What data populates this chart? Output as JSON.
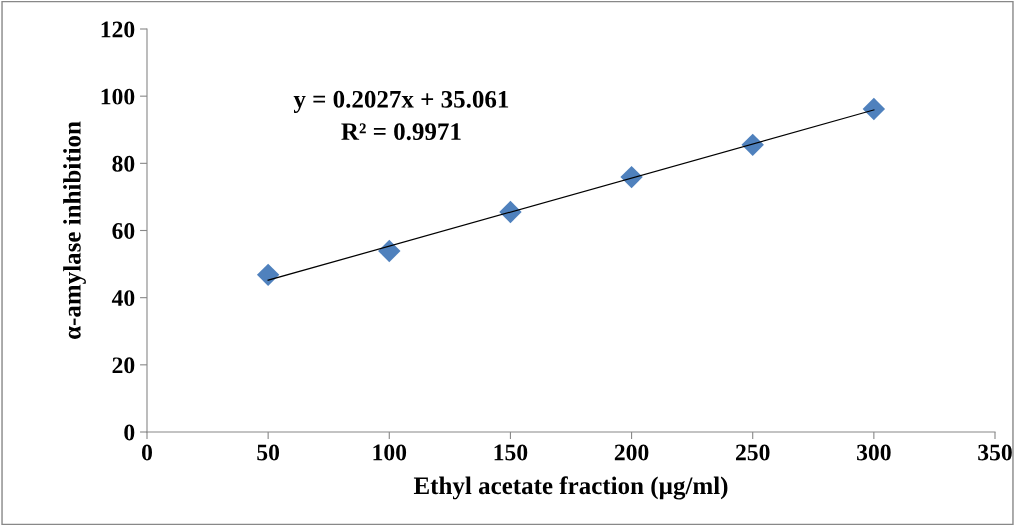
{
  "chart_data": {
    "type": "scatter",
    "xlabel": "Ethyl acetate fraction (µg/ml)",
    "ylabel": "α-amylase inhibition",
    "xlim": [
      0,
      350
    ],
    "xticks": [
      0,
      50,
      100,
      150,
      200,
      250,
      300,
      350
    ],
    "ylim": [
      0,
      120
    ],
    "yticks": [
      0,
      20,
      40,
      60,
      80,
      100,
      120
    ],
    "grid": false,
    "legend": false,
    "marker": "diamond",
    "series": [
      {
        "color": "#4f81bd",
        "x": [
          50,
          100,
          150,
          200,
          250,
          300
        ],
        "values": [
          46.8,
          53.9,
          65.5,
          75.9,
          85.5,
          96.2
        ]
      },
      {
        "type": "line",
        "color": "#000000",
        "x": [
          50,
          300
        ],
        "values": [
          45.2,
          95.9
        ],
        "line_style": "solid",
        "marker": "none"
      }
    ],
    "annotations": [
      "y = 0.2027x + 35.061",
      "R² = 0.9971"
    ]
  }
}
